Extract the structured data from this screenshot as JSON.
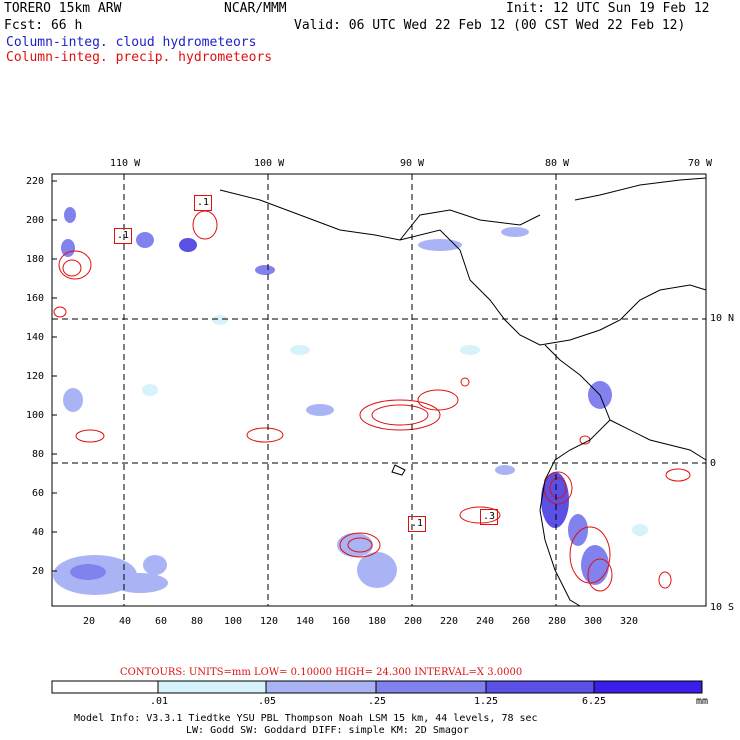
{
  "header": {
    "model": "TORERO  15km ARW",
    "org": "NCAR/MMM",
    "init": "Init: 12 UTC Sun 19 Feb 12",
    "forecast": "Fcst:   66 h",
    "valid": "Valid: 06 UTC Wed 22 Feb 12 (00 CST Wed 22 Feb 12)",
    "field_cloud": "Column-integ. cloud hydrometeors",
    "field_precip": "Column-integ. precip. hydrometeors"
  },
  "axes": {
    "top_lon": [
      "110 W",
      "100 W",
      "90 W",
      "80 W",
      "70 W"
    ],
    "right_lat": [
      "10 N",
      "0",
      "10 S"
    ],
    "left_y": [
      "220",
      "200",
      "180",
      "160",
      "140",
      "120",
      "100",
      "80",
      "60",
      "40",
      "20"
    ],
    "bottom_x": [
      "20",
      "40",
      "60",
      "80",
      "100",
      "120",
      "140",
      "160",
      "180",
      "200",
      "220",
      "240",
      "260",
      "280",
      "300",
      "320"
    ]
  },
  "box_labels": [
    ".1",
    ".1",
    ".1",
    ".3"
  ],
  "contour_info": {
    "text": "CONTOURS:  UNITS=mm  LOW= 0.10000      HIGH=  24.300      INTERVAL=X  3.0000"
  },
  "colorbar": {
    "labels": [
      ".01",
      ".05",
      ".25",
      "1.25",
      "6.25"
    ],
    "unit": "mm",
    "colors": [
      "#ffffff",
      "#d6f2fa",
      "#aab4f5",
      "#8282ee",
      "#5a50e6",
      "#3c1eeb"
    ]
  },
  "footer": {
    "line1": "Model Info: V3.3.1   Tiedtke YSU PBL  Thompson    Noah LSM  15 km,   44 levels,   78 sec",
    "line2": "LW: Godd SW: Goddard DIFF: simple KM: 2D Smagor"
  }
}
